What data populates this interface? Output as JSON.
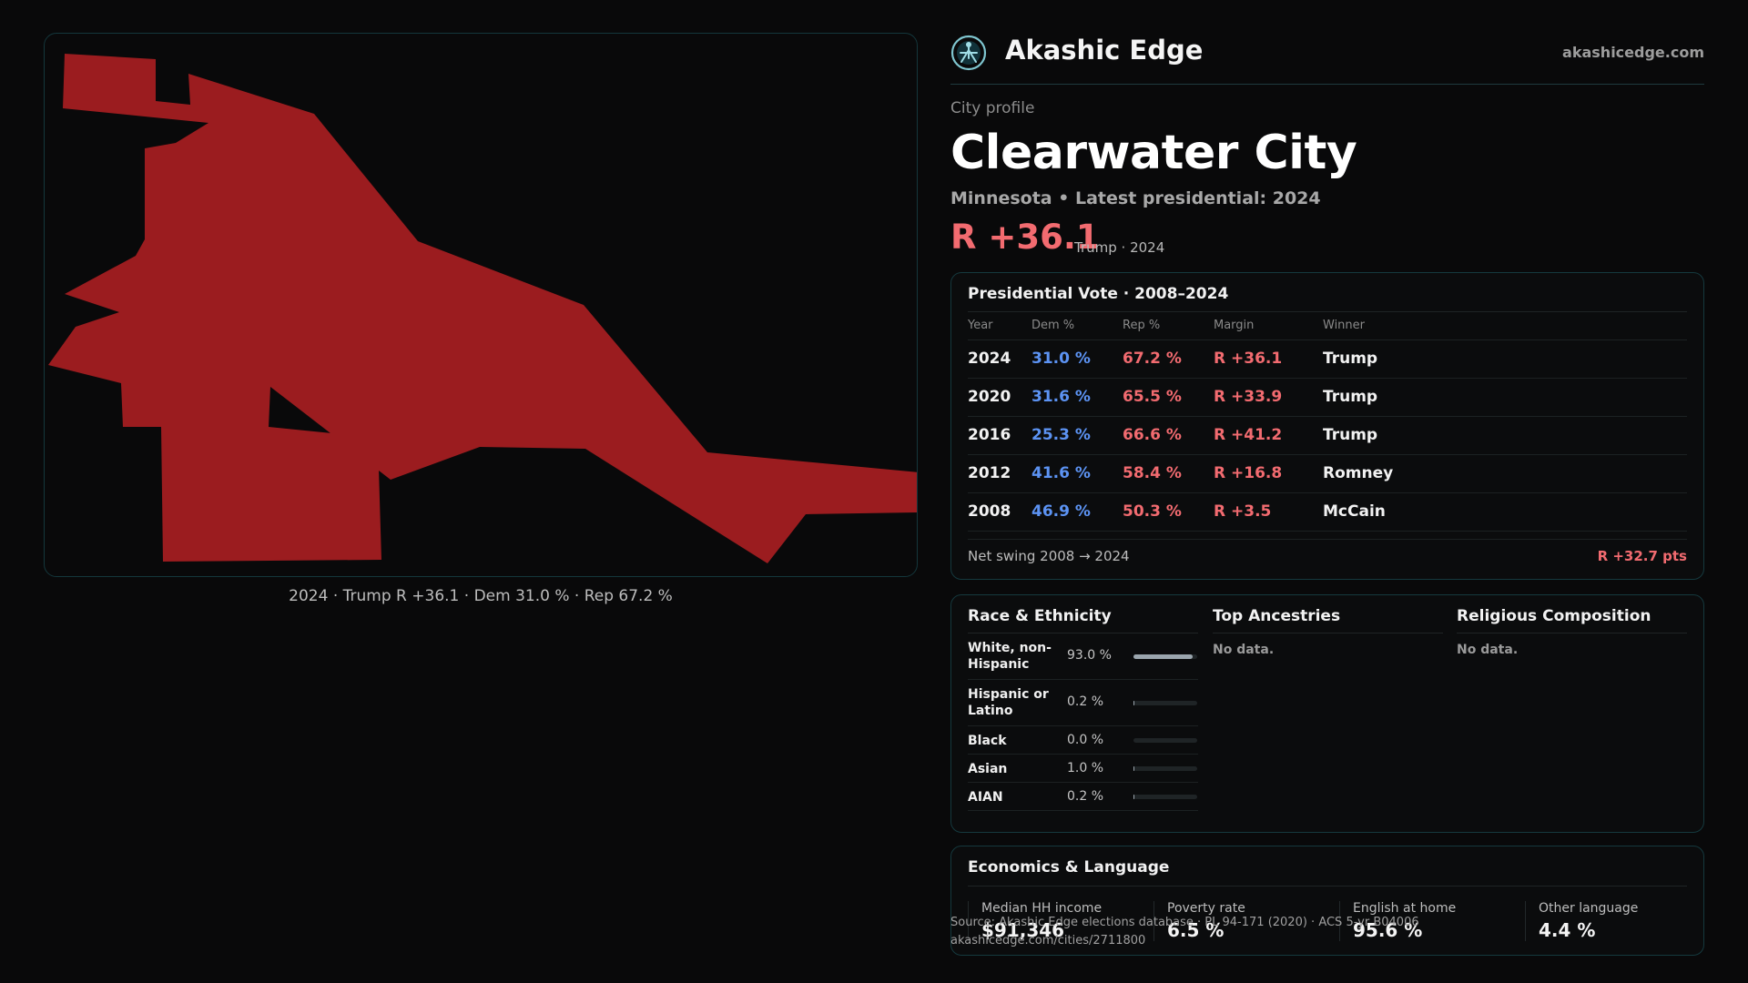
{
  "brand": {
    "name": "Akashic Edge",
    "url": "akashicedge.com"
  },
  "profile": {
    "kicker": "City profile",
    "city": "Clearwater City",
    "subtitle": "Minnesota • Latest presidential: 2024",
    "margin": "R +36.1",
    "margin_detail": "Trump · 2024"
  },
  "map": {
    "caption": "2024 · Trump R +36.1 · Dem 31.0 % · Rep 67.2 %",
    "fill_color": "#9b1c1f"
  },
  "vote_table": {
    "title": "Presidential Vote · 2008–2024",
    "headers": [
      "Year",
      "Dem %",
      "Rep %",
      "Margin",
      "Winner"
    ],
    "rows": [
      {
        "year": "2024",
        "dem": "31.0 %",
        "rep": "67.2 %",
        "margin": "R +36.1",
        "winner": "Trump"
      },
      {
        "year": "2020",
        "dem": "31.6 %",
        "rep": "65.5 %",
        "margin": "R +33.9",
        "winner": "Trump"
      },
      {
        "year": "2016",
        "dem": "25.3 %",
        "rep": "66.6 %",
        "margin": "R +41.2",
        "winner": "Trump"
      },
      {
        "year": "2012",
        "dem": "41.6 %",
        "rep": "58.4 %",
        "margin": "R +16.8",
        "winner": "Romney"
      },
      {
        "year": "2008",
        "dem": "46.9 %",
        "rep": "50.3 %",
        "margin": "R +3.5",
        "winner": "McCain"
      }
    ],
    "swing_label": "Net swing 2008 → 2024",
    "swing_value": "R +32.7 pts"
  },
  "race": {
    "title": "Race & Ethnicity",
    "rows": [
      {
        "label": "White, non-Hispanic",
        "pct": "93.0 %",
        "value": 93.0
      },
      {
        "label": "Hispanic or Latino",
        "pct": "0.2 %",
        "value": 0.2
      },
      {
        "label": "Black",
        "pct": "0.0 %",
        "value": 0.0
      },
      {
        "label": "Asian",
        "pct": "1.0 %",
        "value": 1.0
      },
      {
        "label": "AIAN",
        "pct": "0.2 %",
        "value": 0.2
      }
    ]
  },
  "ancestries": {
    "title": "Top Ancestries",
    "empty": "No data."
  },
  "religion": {
    "title": "Religious Composition",
    "empty": "No data."
  },
  "economics": {
    "title": "Economics & Language",
    "stats": [
      {
        "label": "Median HH income",
        "value": "$91,346"
      },
      {
        "label": "Poverty rate",
        "value": "6.5 %"
      },
      {
        "label": "English at home",
        "value": "95.6 %"
      },
      {
        "label": "Other language",
        "value": "4.4 %"
      }
    ]
  },
  "footer": {
    "source": "Source: Akashic Edge elections database · PL 94-171 (2020) · ACS 5-yr B04006",
    "link": "akashicedge.com/cities/2711800"
  },
  "colors": {
    "dem": "#5c93f3",
    "rep": "#f26b70",
    "accent": "#15393e"
  }
}
